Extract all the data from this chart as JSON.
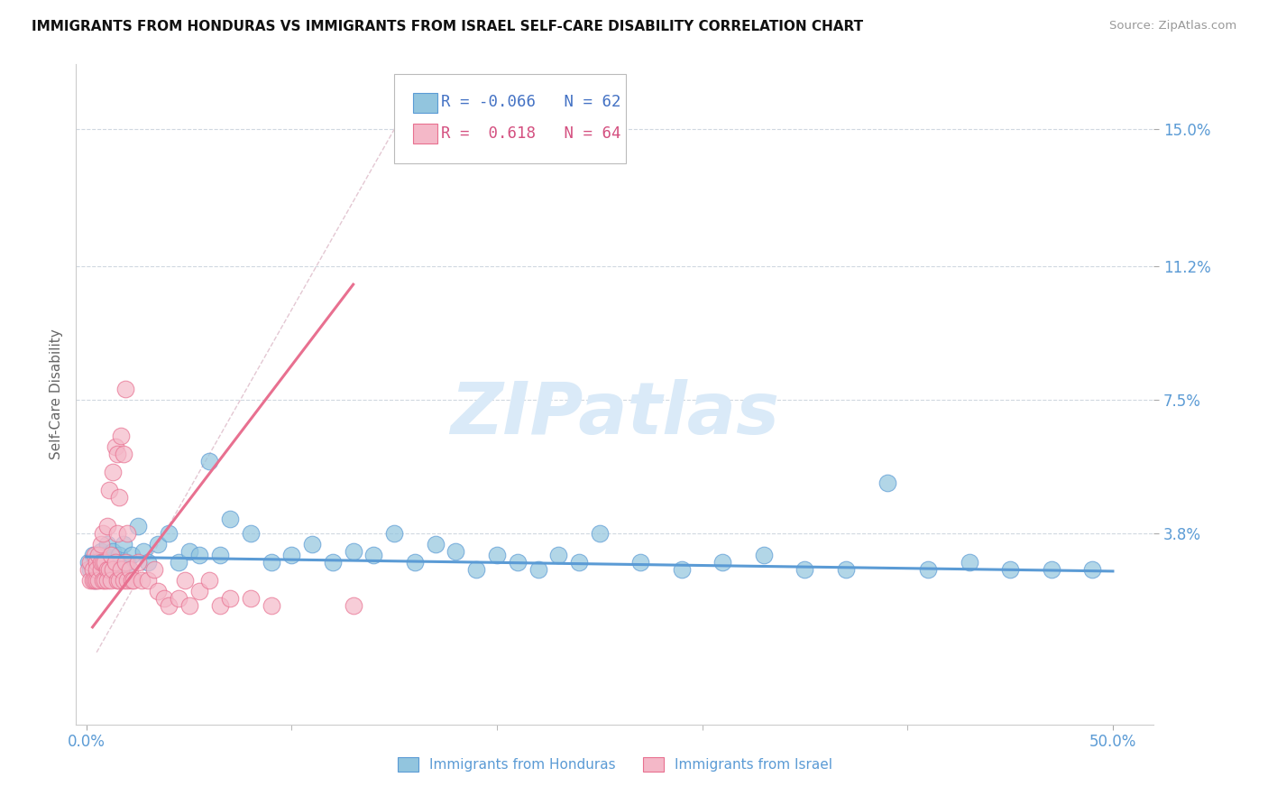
{
  "title": "IMMIGRANTS FROM HONDURAS VS IMMIGRANTS FROM ISRAEL SELF-CARE DISABILITY CORRELATION CHART",
  "source": "Source: ZipAtlas.com",
  "ylabel": "Self-Care Disability",
  "xlim": [
    -0.005,
    0.52
  ],
  "ylim": [
    -0.015,
    0.168
  ],
  "ytick_positions": [
    0.038,
    0.075,
    0.112,
    0.15
  ],
  "ytick_labels": [
    "3.8%",
    "7.5%",
    "11.2%",
    "15.0%"
  ],
  "xtick_only_ends": true,
  "xtick_positions": [
    0.0,
    0.5
  ],
  "xtick_labels": [
    "0.0%",
    "50.0%"
  ],
  "xtick_minor_positions": [
    0.1,
    0.2,
    0.3,
    0.4
  ],
  "legend_R_blue": "-0.066",
  "legend_N_blue": "62",
  "legend_R_pink": "0.618",
  "legend_N_pink": "64",
  "color_blue": "#92c5de",
  "color_pink": "#f4b8c8",
  "color_blue_line": "#5b9bd5",
  "color_pink_line": "#e87090",
  "color_blue_text": "#4472c4",
  "color_pink_text": "#d45080",
  "color_axis_text": "#5b9bd5",
  "watermark_text": "ZIPatlas",
  "watermark_color": "#daeaf8",
  "blue_scatter_x": [
    0.001,
    0.002,
    0.003,
    0.004,
    0.005,
    0.006,
    0.007,
    0.008,
    0.009,
    0.01,
    0.011,
    0.012,
    0.013,
    0.014,
    0.015,
    0.016,
    0.017,
    0.018,
    0.019,
    0.02,
    0.022,
    0.025,
    0.028,
    0.03,
    0.035,
    0.04,
    0.045,
    0.05,
    0.055,
    0.06,
    0.065,
    0.07,
    0.08,
    0.09,
    0.1,
    0.11,
    0.12,
    0.13,
    0.14,
    0.15,
    0.16,
    0.17,
    0.18,
    0.19,
    0.2,
    0.21,
    0.22,
    0.23,
    0.24,
    0.25,
    0.27,
    0.29,
    0.31,
    0.33,
    0.35,
    0.37,
    0.39,
    0.41,
    0.43,
    0.45,
    0.47,
    0.49
  ],
  "blue_scatter_y": [
    0.03,
    0.028,
    0.032,
    0.025,
    0.03,
    0.028,
    0.033,
    0.03,
    0.032,
    0.035,
    0.03,
    0.028,
    0.033,
    0.03,
    0.028,
    0.032,
    0.03,
    0.035,
    0.028,
    0.03,
    0.032,
    0.04,
    0.033,
    0.03,
    0.035,
    0.038,
    0.03,
    0.033,
    0.032,
    0.058,
    0.032,
    0.042,
    0.038,
    0.03,
    0.032,
    0.035,
    0.03,
    0.033,
    0.032,
    0.038,
    0.03,
    0.035,
    0.033,
    0.028,
    0.032,
    0.03,
    0.028,
    0.032,
    0.03,
    0.038,
    0.03,
    0.028,
    0.03,
    0.032,
    0.028,
    0.028,
    0.052,
    0.028,
    0.03,
    0.028,
    0.028,
    0.028
  ],
  "pink_scatter_x": [
    0.001,
    0.002,
    0.002,
    0.003,
    0.003,
    0.004,
    0.004,
    0.005,
    0.005,
    0.005,
    0.006,
    0.006,
    0.007,
    0.007,
    0.007,
    0.008,
    0.008,
    0.008,
    0.009,
    0.009,
    0.01,
    0.01,
    0.01,
    0.011,
    0.011,
    0.012,
    0.012,
    0.013,
    0.013,
    0.014,
    0.014,
    0.015,
    0.015,
    0.015,
    0.016,
    0.016,
    0.017,
    0.017,
    0.018,
    0.018,
    0.019,
    0.019,
    0.02,
    0.02,
    0.021,
    0.022,
    0.023,
    0.025,
    0.027,
    0.03,
    0.033,
    0.035,
    0.038,
    0.04,
    0.045,
    0.048,
    0.05,
    0.055,
    0.06,
    0.065,
    0.07,
    0.08,
    0.09,
    0.13
  ],
  "pink_scatter_y": [
    0.028,
    0.03,
    0.025,
    0.028,
    0.025,
    0.032,
    0.025,
    0.03,
    0.025,
    0.028,
    0.032,
    0.025,
    0.028,
    0.03,
    0.035,
    0.03,
    0.025,
    0.038,
    0.025,
    0.03,
    0.04,
    0.028,
    0.025,
    0.05,
    0.028,
    0.032,
    0.025,
    0.028,
    0.055,
    0.03,
    0.062,
    0.025,
    0.038,
    0.06,
    0.025,
    0.048,
    0.028,
    0.065,
    0.025,
    0.06,
    0.03,
    0.078,
    0.025,
    0.038,
    0.028,
    0.025,
    0.025,
    0.03,
    0.025,
    0.025,
    0.028,
    0.022,
    0.02,
    0.018,
    0.02,
    0.025,
    0.018,
    0.022,
    0.025,
    0.018,
    0.02,
    0.02,
    0.018,
    0.018
  ],
  "blue_trend_x": [
    0.0,
    0.5
  ],
  "blue_trend_y": [
    0.0315,
    0.0275
  ],
  "pink_trend_x": [
    0.003,
    0.13
  ],
  "pink_trend_y": [
    0.012,
    0.107
  ],
  "ref_line_x": [
    0.005,
    0.155
  ],
  "ref_line_y": [
    0.005,
    0.155
  ]
}
